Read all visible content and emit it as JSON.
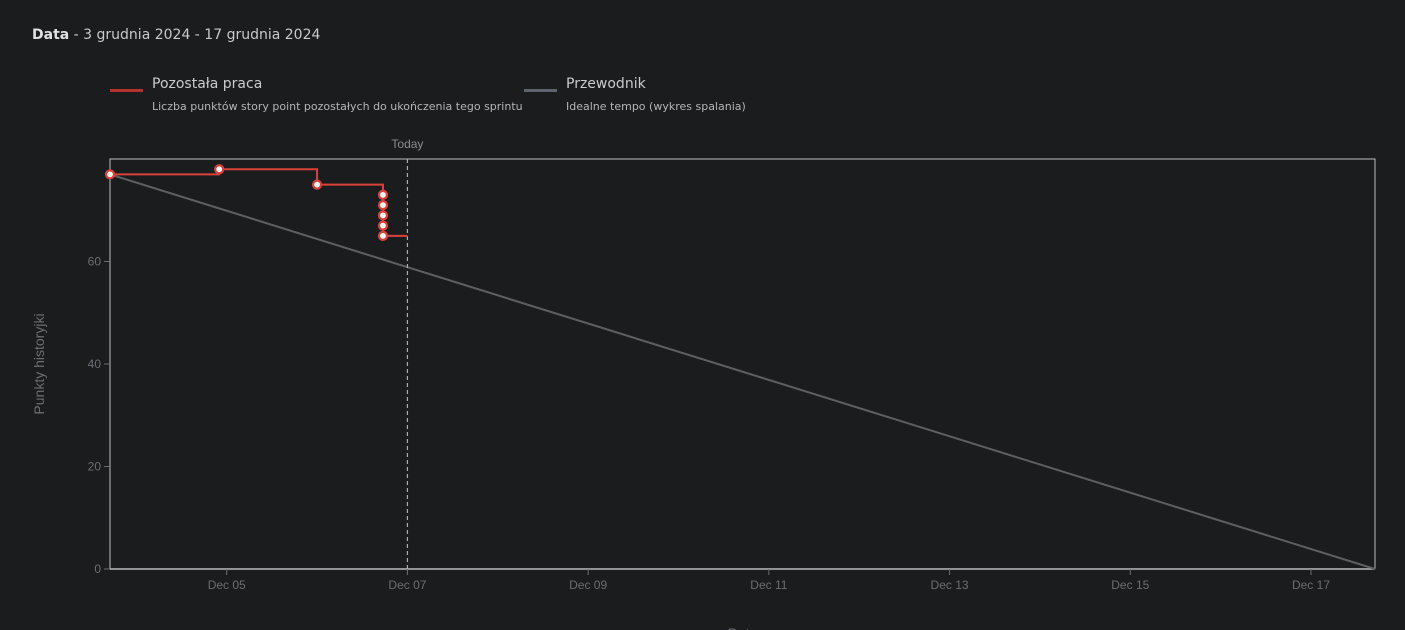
{
  "header": {
    "label": "Data",
    "range": " - 3 grudnia 2024 - 17 grudnia 2024"
  },
  "legend": [
    {
      "title": "Pozostała praca",
      "description": "Liczba punktów story point pozostałych do ukończenia tego sprintu",
      "color": "#b3332c"
    },
    {
      "title": "Przewodnik",
      "description": "Idealne tempo (wykres spalania)",
      "color": "#5d646c"
    }
  ],
  "chart_data": {
    "type": "line",
    "xlabel": "Data",
    "ylabel": "Punkty historyjki",
    "ylim": [
      0,
      80
    ],
    "xlim": [
      "2024-12-03T17:00",
      "2024-12-17T17:00"
    ],
    "x_ticks": [
      "Dec 05",
      "Dec 07",
      "Dec 09",
      "Dec 11",
      "Dec 13",
      "Dec 15",
      "Dec 17"
    ],
    "x_tick_dates": [
      "2024-12-05",
      "2024-12-07",
      "2024-12-09",
      "2024-12-11",
      "2024-12-13",
      "2024-12-15",
      "2024-12-17"
    ],
    "y_ticks": [
      0,
      20,
      40,
      60
    ],
    "grid": false,
    "today_marker": {
      "label": "Today",
      "x": "2024-12-07T00:00"
    },
    "series": [
      {
        "name": "Pozostała praca",
        "color": "#d9423a",
        "step": true,
        "points": [
          {
            "x": "2024-12-03T17:00",
            "y": 77
          },
          {
            "x": "2024-12-04T22:00",
            "y": 78
          },
          {
            "x": "2024-12-06T00:00",
            "y": 75
          },
          {
            "x": "2024-12-06T17:30",
            "y": 73
          },
          {
            "x": "2024-12-06T17:30",
            "y": 71
          },
          {
            "x": "2024-12-06T17:30",
            "y": 69
          },
          {
            "x": "2024-12-06T17:30",
            "y": 67
          },
          {
            "x": "2024-12-06T17:30",
            "y": 65
          },
          {
            "x": "2024-12-07T00:00",
            "y": 65
          }
        ],
        "marker_count": 8
      },
      {
        "name": "Przewodnik",
        "color": "#5d5f62",
        "points": [
          {
            "x": "2024-12-03T17:00",
            "y": 77
          },
          {
            "x": "2024-12-17T17:00",
            "y": 0
          }
        ]
      }
    ]
  }
}
